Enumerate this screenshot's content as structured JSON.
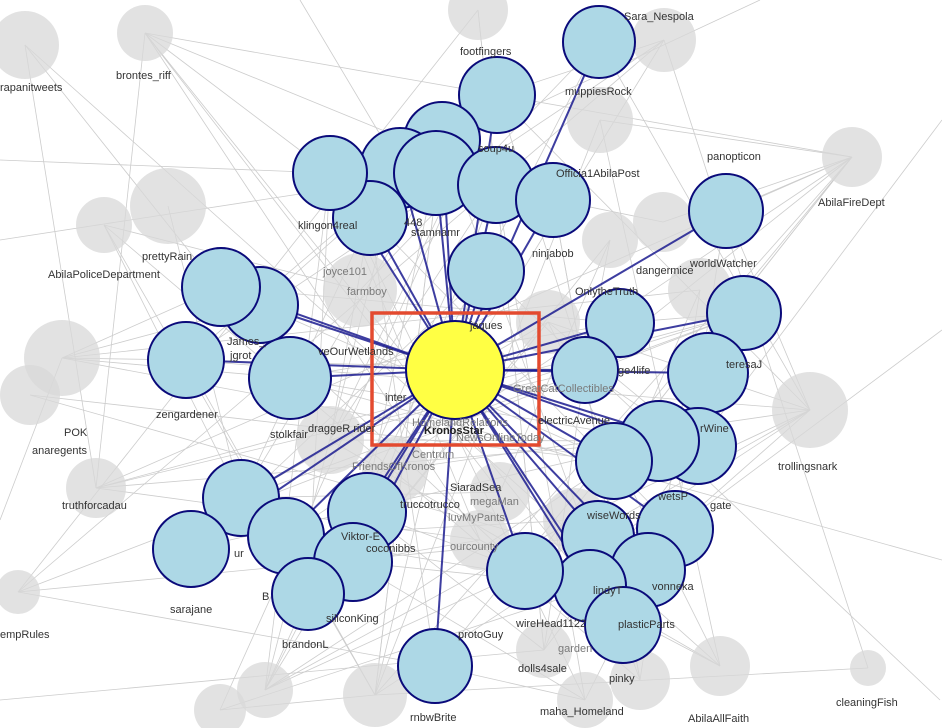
{
  "colors": {
    "background": "#ffffff",
    "edge_background": "#cccccc",
    "edge_focus": "#1b1b8f",
    "node_background": "#d8d8d8",
    "node_neighbor_fill": "#add8e6",
    "node_neighbor_stroke": "#0a0a7a",
    "node_focus_fill": "#ffff44",
    "highlight_box": "#e34a2f"
  },
  "focus": {
    "name": "KronosStar"
  },
  "labels": {
    "sara_nespola": "Sara_Nespola",
    "footfingers": "footfingers",
    "brontes_riff": "brontes_riff",
    "rapanitweets": "rapanitweets",
    "muppiesrock": "muppiesRock",
    "soup4u": "soup4u",
    "official_abila_post": "Officia1AbilaPost",
    "panopticon": "panopticon",
    "abila_fire_dept": "AbilaFireDept",
    "klingon4real": "klingon4real",
    "n448": "448",
    "stamnamr": "stamnamr",
    "ninjabob": "ninjabob",
    "pretty_rain": "prettyRain",
    "abila_police": "AbilaPoliceDepartment",
    "joyce101": "joyce101",
    "farmboy": "farmboy",
    "dangermice": "dangermice",
    "world_watcher": "worldWatcher",
    "only_the_truth": "OnlytheTruth",
    "james": "James_",
    "jgrot": "jgrot",
    "love_our_wetlands": "veOurWetlands",
    "jaques": "jaques",
    "ge4life": "ge4life",
    "teresaj": "teresaJ",
    "pok": "POK",
    "anaregents": "anaregents",
    "zengardener": "zengardener",
    "stolkfair": "stolkfair",
    "dragger_rider": "draggeR rider",
    "inter": "inter",
    "home_relations": "HomelandRelations",
    "great_collectibles": "GreatCatCollectibles",
    "electric": "electricAvenue",
    "wine": "rWine",
    "news_online": "NewsOnlineToday",
    "trollingsnark": "trollingsnark",
    "friends_of_kronos": "FriendsOfKronos",
    "centrum": "Centrum",
    "siarad_sea": "SiaradSea",
    "mega_man": "megaMan",
    "truccotrucco": "truccotrucco",
    "luvmypants": "luvMyPants",
    "wise_words": "wiseWords",
    "sweets": "wetsP",
    "gate": "gate",
    "truthforcadau": "truthforcadau",
    "viktor_e": "Viktor-E",
    "ur": "ur",
    "coconibbs": "coconibbs",
    "our_county": "ourcounty",
    "vonneka": "vonneka",
    "lindy_t": "lindyT",
    "temp_rules": "empRules",
    "sarajane": "sarajane",
    "b": "B",
    "silicon_king": "siliconKing",
    "brandonl": "brandonL",
    "proto_guy": "protoGuy",
    "wirehead1122": "wireHead1122",
    "plastic_parts": "plasticParts",
    "garden": "garden",
    "dolls4sale": "dolls4sale",
    "pinky": "pinky",
    "cleaning_fish": "cleaningFish",
    "rnbw_brite": "rnbwBrite",
    "maha_homeland": "maha_Homeland",
    "abila_all_faith": "AbilaAllFaith"
  }
}
